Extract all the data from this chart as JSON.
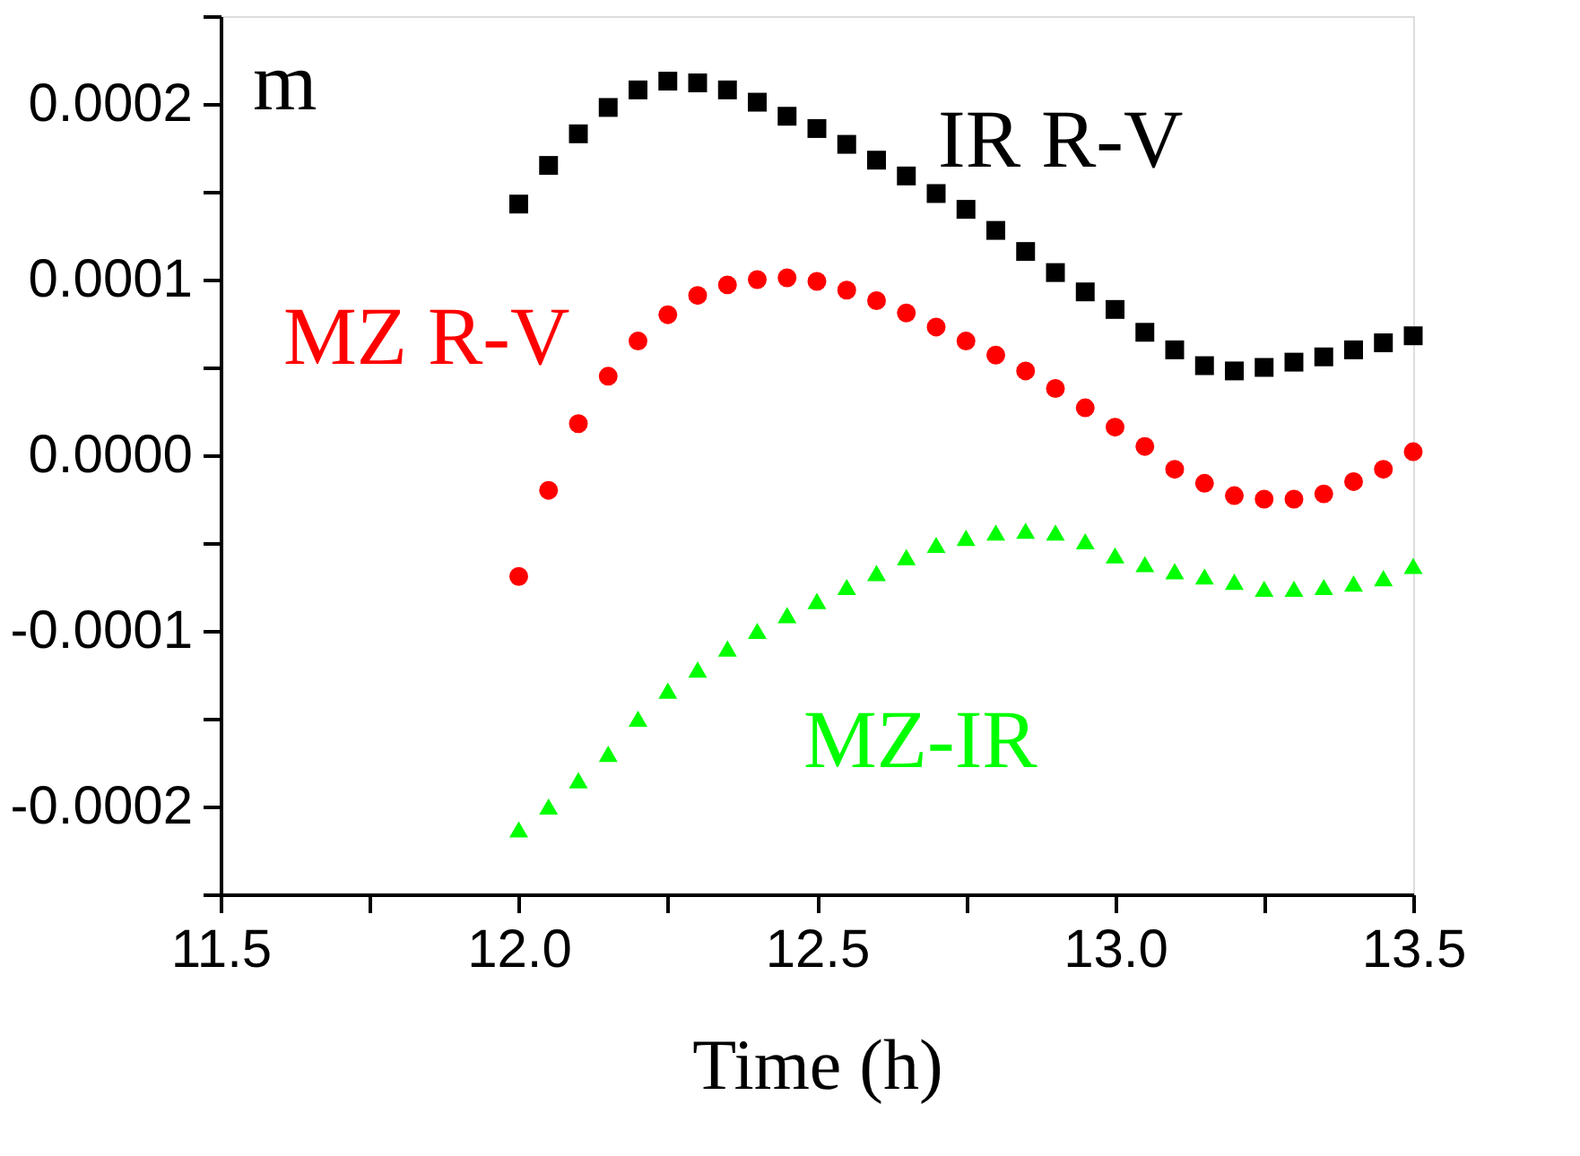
{
  "chart_data": {
    "type": "scatter",
    "xlabel": "Time (h)",
    "annotations": [
      "m"
    ],
    "x": [
      12.0,
      12.05,
      12.1,
      12.15,
      12.2,
      12.25,
      12.3,
      12.35,
      12.4,
      12.45,
      12.5,
      12.55,
      12.6,
      12.65,
      12.7,
      12.75,
      12.8,
      12.85,
      12.9,
      12.95,
      13.0,
      13.05,
      13.1,
      13.15,
      13.2,
      13.25,
      13.3,
      13.35,
      13.4,
      13.45,
      13.5
    ],
    "series": [
      {
        "name": "IR R-V",
        "color": "#000000",
        "marker": "square",
        "values": [
          0.000143,
          0.000165,
          0.000183,
          0.000198,
          0.000208,
          0.000213,
          0.000212,
          0.000208,
          0.000201,
          0.000193,
          0.000186,
          0.000177,
          0.000168,
          0.000159,
          0.000149,
          0.00014,
          0.000128,
          0.000116,
          0.000104,
          9.3e-05,
          8.3e-05,
          7e-05,
          6e-05,
          5.1e-05,
          4.8e-05,
          5e-05,
          5.3e-05,
          5.6e-05,
          6e-05,
          6.4e-05,
          6.8e-05
        ]
      },
      {
        "name": "MZ R-V",
        "color": "#ff0000",
        "marker": "circle",
        "values": [
          -6.9e-05,
          -2e-05,
          1.8e-05,
          4.5e-05,
          6.5e-05,
          8e-05,
          9.1e-05,
          9.7e-05,
          0.0001,
          0.000101,
          9.9e-05,
          9.4e-05,
          8.8e-05,
          8.1e-05,
          7.3e-05,
          6.5e-05,
          5.7e-05,
          4.8e-05,
          3.8e-05,
          2.7e-05,
          1.6e-05,
          5e-06,
          -8e-06,
          -1.6e-05,
          -2.3e-05,
          -2.5e-05,
          -2.5e-05,
          -2.2e-05,
          -1.5e-05,
          -8e-06,
          2e-06
        ]
      },
      {
        "name": "MZ-IR",
        "color": "#00ff00",
        "marker": "triangle",
        "values": [
          -0.000213,
          -0.0002,
          -0.000185,
          -0.00017,
          -0.00015,
          -0.000134,
          -0.000122,
          -0.00011,
          -0.0001,
          -9.1e-05,
          -8.3e-05,
          -7.5e-05,
          -6.7e-05,
          -5.8e-05,
          -5.1e-05,
          -4.7e-05,
          -4.4e-05,
          -4.3e-05,
          -4.4e-05,
          -4.9e-05,
          -5.7e-05,
          -6.2e-05,
          -6.6e-05,
          -6.9e-05,
          -7.2e-05,
          -7.6e-05,
          -7.6e-05,
          -7.5e-05,
          -7.3e-05,
          -7e-05,
          -6.3e-05
        ]
      }
    ],
    "xlim": [
      11.5,
      13.5
    ],
    "xticks": [
      {
        "value": 11.5,
        "label": "11.5"
      },
      {
        "value": 11.75,
        "label": null
      },
      {
        "value": 12,
        "label": "12.0"
      },
      {
        "value": 12.25,
        "label": null
      },
      {
        "value": 12.5,
        "label": "12.5"
      },
      {
        "value": 12.75,
        "label": null
      },
      {
        "value": 13,
        "label": "13.0"
      },
      {
        "value": 13.25,
        "label": null
      },
      {
        "value": 13.5,
        "label": "13.5"
      }
    ],
    "ylim": [
      -0.00025,
      0.00025
    ],
    "yticks": [
      {
        "value": -0.00025,
        "label": null
      },
      {
        "value": -0.0002,
        "label": "-0.0002"
      },
      {
        "value": -0.00015,
        "label": null
      },
      {
        "value": -0.0001,
        "label": "-0.0001"
      },
      {
        "value": -5e-05,
        "label": null
      },
      {
        "value": 0,
        "label": "0.0000"
      },
      {
        "value": 5e-05,
        "label": null
      },
      {
        "value": 0.0001,
        "label": "0.0001"
      },
      {
        "value": 0.00015,
        "label": null
      },
      {
        "value": 0.0002,
        "label": "0.0002"
      },
      {
        "value": 0.00025,
        "label": null
      }
    ],
    "grid": false
  }
}
